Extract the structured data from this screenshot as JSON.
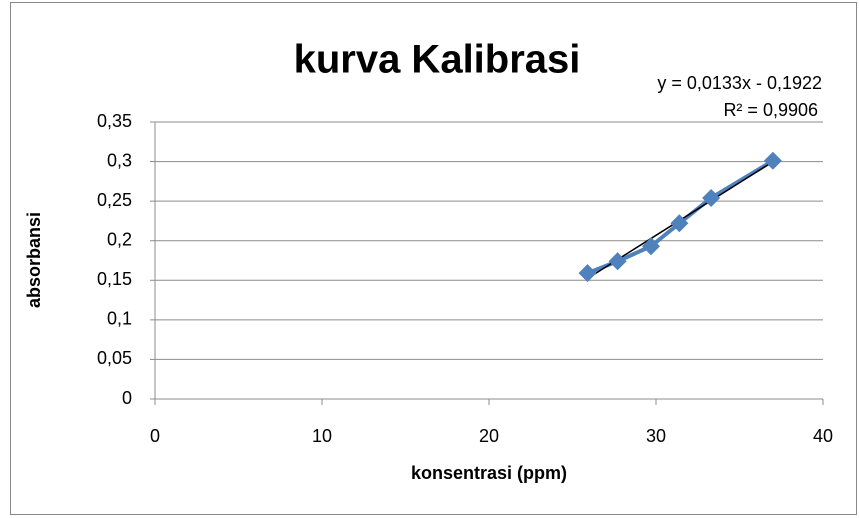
{
  "chart_data": {
    "type": "scatter",
    "title": "kurva Kalibrasi",
    "xlabel": "konsentrasi (ppm)",
    "ylabel": "absorbansi",
    "x": [
      25.9,
      27.7,
      29.7,
      31.4,
      33.3,
      37.0
    ],
    "series": [
      {
        "color": "#4f81bd",
        "values": [
          0.159,
          0.174,
          0.193,
          0.222,
          0.254,
          0.301
        ]
      }
    ],
    "marker": "diamond",
    "lines": true,
    "trendline": {
      "slope": 0.0133,
      "intercept": -0.1922,
      "color": "#000000",
      "equation": "y = 0,0133x - 0,1922",
      "r_squared": "R² = 0,9906"
    },
    "xlim": [
      0,
      40
    ],
    "xticks": [
      0,
      10,
      20,
      30,
      40
    ],
    "ylim": [
      0,
      0.35
    ],
    "yticks": [
      0,
      {
        "value": 0.05,
        "label": "0,05"
      },
      {
        "value": 0.1,
        "label": "0,1"
      },
      {
        "value": 0.15,
        "label": "0,15"
      },
      {
        "value": 0.2,
        "label": "0,2"
      },
      {
        "value": 0.25,
        "label": "0,25"
      },
      {
        "value": 0.3,
        "label": "0,3"
      },
      {
        "value": 0.35,
        "label": "0,35"
      }
    ],
    "grid": true
  }
}
